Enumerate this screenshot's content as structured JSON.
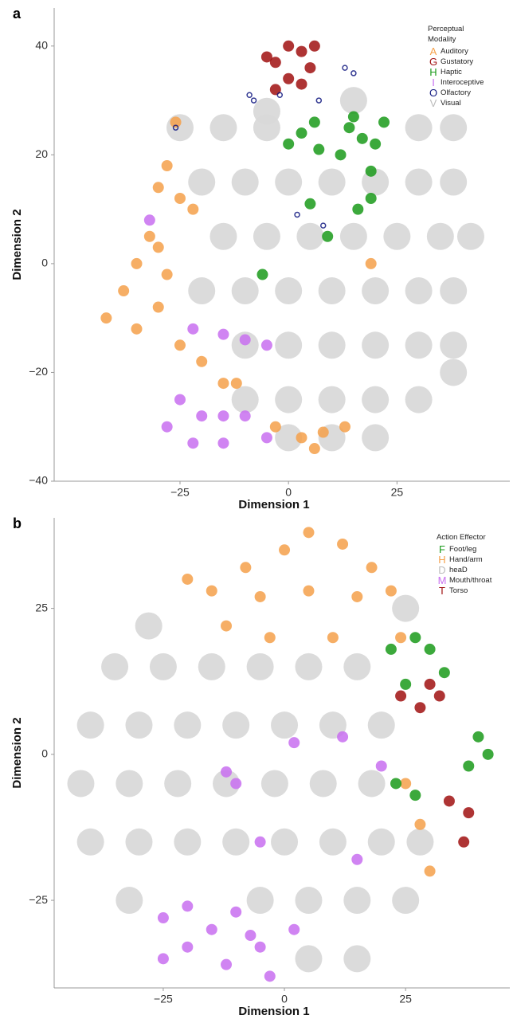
{
  "chart_data": [
    {
      "type": "scatter",
      "panel": "a",
      "xlabel": "Dimension 1",
      "ylabel": "Dimension 2",
      "legend_title": "Perceptual Modality",
      "xlim": [
        -54,
        51
      ],
      "ylim": [
        -40,
        47
      ],
      "xticks": [
        {
          "value": -25,
          "label": "−25"
        },
        0,
        25
      ],
      "yticks": [
        40,
        20,
        0,
        {
          "value": -20,
          "label": "−20"
        },
        {
          "value": -40,
          "label": "−40"
        }
      ],
      "series": [
        {
          "name": "Auditory",
          "marker": "A",
          "color": "#f5a04a",
          "x": [
            -42,
            -38,
            -35,
            -32,
            -35,
            -30,
            -28,
            -30,
            -25,
            -20,
            -15,
            -12,
            -28,
            -25,
            -30,
            -22,
            -3,
            3,
            8,
            13,
            6,
            -26,
            19
          ],
          "y": [
            -10,
            -5,
            0,
            5,
            -12,
            -8,
            -2,
            3,
            -15,
            -18,
            -22,
            -22,
            18,
            12,
            14,
            10,
            -30,
            -32,
            -31,
            -30,
            -34,
            26,
            0
          ]
        },
        {
          "name": "Gustatory",
          "marker": "G",
          "color": "#a01010",
          "x": [
            -3,
            0,
            3,
            5,
            0,
            -3,
            3,
            -5,
            6
          ],
          "y": [
            37,
            40,
            39,
            36,
            34,
            32,
            33,
            38,
            40
          ]
        },
        {
          "name": "Haptic",
          "marker": "H",
          "color": "#1a9a1a",
          "x": [
            0,
            3,
            6,
            7,
            14,
            17,
            20,
            15,
            22,
            12,
            19,
            19,
            16,
            5,
            9,
            -6
          ],
          "y": [
            22,
            24,
            26,
            21,
            25,
            23,
            22,
            27,
            26,
            20,
            17,
            12,
            10,
            11,
            5,
            -2
          ]
        },
        {
          "name": "Interoceptive",
          "marker": "I",
          "color": "#c86ff0",
          "x": [
            -32,
            -22,
            -15,
            -10,
            -5,
            -25,
            -20,
            -15,
            -10,
            -22,
            -15,
            -5,
            -28
          ],
          "y": [
            8,
            -12,
            -13,
            -14,
            -15,
            -25,
            -28,
            -28,
            -28,
            -33,
            -33,
            -32,
            -30
          ]
        },
        {
          "name": "Olfactory",
          "marker": "O",
          "color": "#101880",
          "x": [
            -9,
            -8,
            -2,
            7,
            13,
            15,
            -26,
            2,
            8
          ],
          "y": [
            31,
            30,
            31,
            30,
            36,
            35,
            25,
            9,
            7
          ]
        },
        {
          "name": "Visual",
          "marker": "V",
          "color": "#d9d9d9",
          "x": [
            -25,
            -15,
            -5,
            30,
            38,
            -20,
            -10,
            0,
            10,
            20,
            30,
            38,
            -15,
            -5,
            5,
            15,
            25,
            35,
            42,
            -20,
            -10,
            0,
            10,
            20,
            30,
            38,
            -10,
            0,
            10,
            20,
            30,
            38,
            -10,
            0,
            10,
            20,
            30,
            38,
            0,
            10,
            20,
            -5,
            15
          ],
          "y": [
            25,
            25,
            25,
            25,
            25,
            15,
            15,
            15,
            15,
            15,
            15,
            15,
            5,
            5,
            5,
            5,
            5,
            5,
            5,
            -5,
            -5,
            -5,
            -5,
            -5,
            -5,
            -5,
            -15,
            -15,
            -15,
            -15,
            -15,
            -15,
            -25,
            -25,
            -25,
            -25,
            -25,
            -20,
            -32,
            -32,
            -32,
            28,
            30
          ]
        }
      ]
    },
    {
      "type": "scatter",
      "panel": "b",
      "xlabel": "Dimension 1",
      "ylabel": "Dimension 2",
      "legend_title": "Action Effector",
      "xlim": [
        -47.5,
        46.5
      ],
      "ylim": [
        -40,
        40.5
      ],
      "xticks": [
        {
          "value": -25,
          "label": "−25"
        },
        0,
        25
      ],
      "yticks": [
        25,
        0,
        {
          "value": -25,
          "label": "−25"
        }
      ],
      "series": [
        {
          "name": "Foot/leg",
          "marker": "F",
          "color": "#1a9a1a",
          "x": [
            22,
            27,
            30,
            33,
            25,
            38,
            42,
            40,
            23,
            27
          ],
          "y": [
            18,
            20,
            18,
            14,
            12,
            -2,
            0,
            3,
            -5,
            -7
          ]
        },
        {
          "name": "Hand/arm",
          "marker": "H",
          "color": "#f5a04a",
          "x": [
            -15,
            -8,
            0,
            5,
            12,
            18,
            22,
            -5,
            5,
            15,
            -3,
            10,
            -20,
            -12,
            24,
            28,
            25,
            30
          ],
          "y": [
            28,
            32,
            35,
            38,
            36,
            32,
            28,
            27,
            28,
            27,
            20,
            20,
            30,
            22,
            20,
            -12,
            -5,
            -20
          ]
        },
        {
          "name": "heaD",
          "marker": "D",
          "color": "#d9d9d9",
          "x": [
            -35,
            -25,
            -15,
            -5,
            5,
            15,
            -40,
            -30,
            -20,
            -10,
            0,
            10,
            20,
            -42,
            -32,
            -22,
            -12,
            -2,
            8,
            18,
            -40,
            -30,
            -20,
            -10,
            0,
            10,
            20,
            28,
            -32,
            -5,
            5,
            15,
            25,
            5,
            15,
            -28,
            25
          ],
          "y": [
            15,
            15,
            15,
            15,
            15,
            15,
            5,
            5,
            5,
            5,
            5,
            5,
            5,
            -5,
            -5,
            -5,
            -5,
            -5,
            -5,
            -5,
            -15,
            -15,
            -15,
            -15,
            -15,
            -15,
            -15,
            -15,
            -25,
            -25,
            -25,
            -25,
            -25,
            -35,
            -35,
            22,
            25
          ]
        },
        {
          "name": "Mouth/throat",
          "marker": "M",
          "color": "#c86ff0",
          "x": [
            -25,
            -20,
            -15,
            -10,
            -5,
            -20,
            -12,
            -3,
            -25,
            -7,
            -10,
            -12,
            -5,
            2,
            12,
            20,
            2,
            15
          ],
          "y": [
            -28,
            -26,
            -30,
            -27,
            -33,
            -33,
            -36,
            -38,
            -35,
            -31,
            -5,
            -3,
            -15,
            2,
            3,
            -2,
            -30,
            -18
          ]
        },
        {
          "name": "Torso",
          "marker": "T",
          "color": "#a01010",
          "x": [
            24,
            28,
            30,
            34,
            38,
            37,
            32
          ],
          "y": [
            10,
            8,
            12,
            -8,
            -10,
            -15,
            10
          ]
        }
      ]
    }
  ]
}
